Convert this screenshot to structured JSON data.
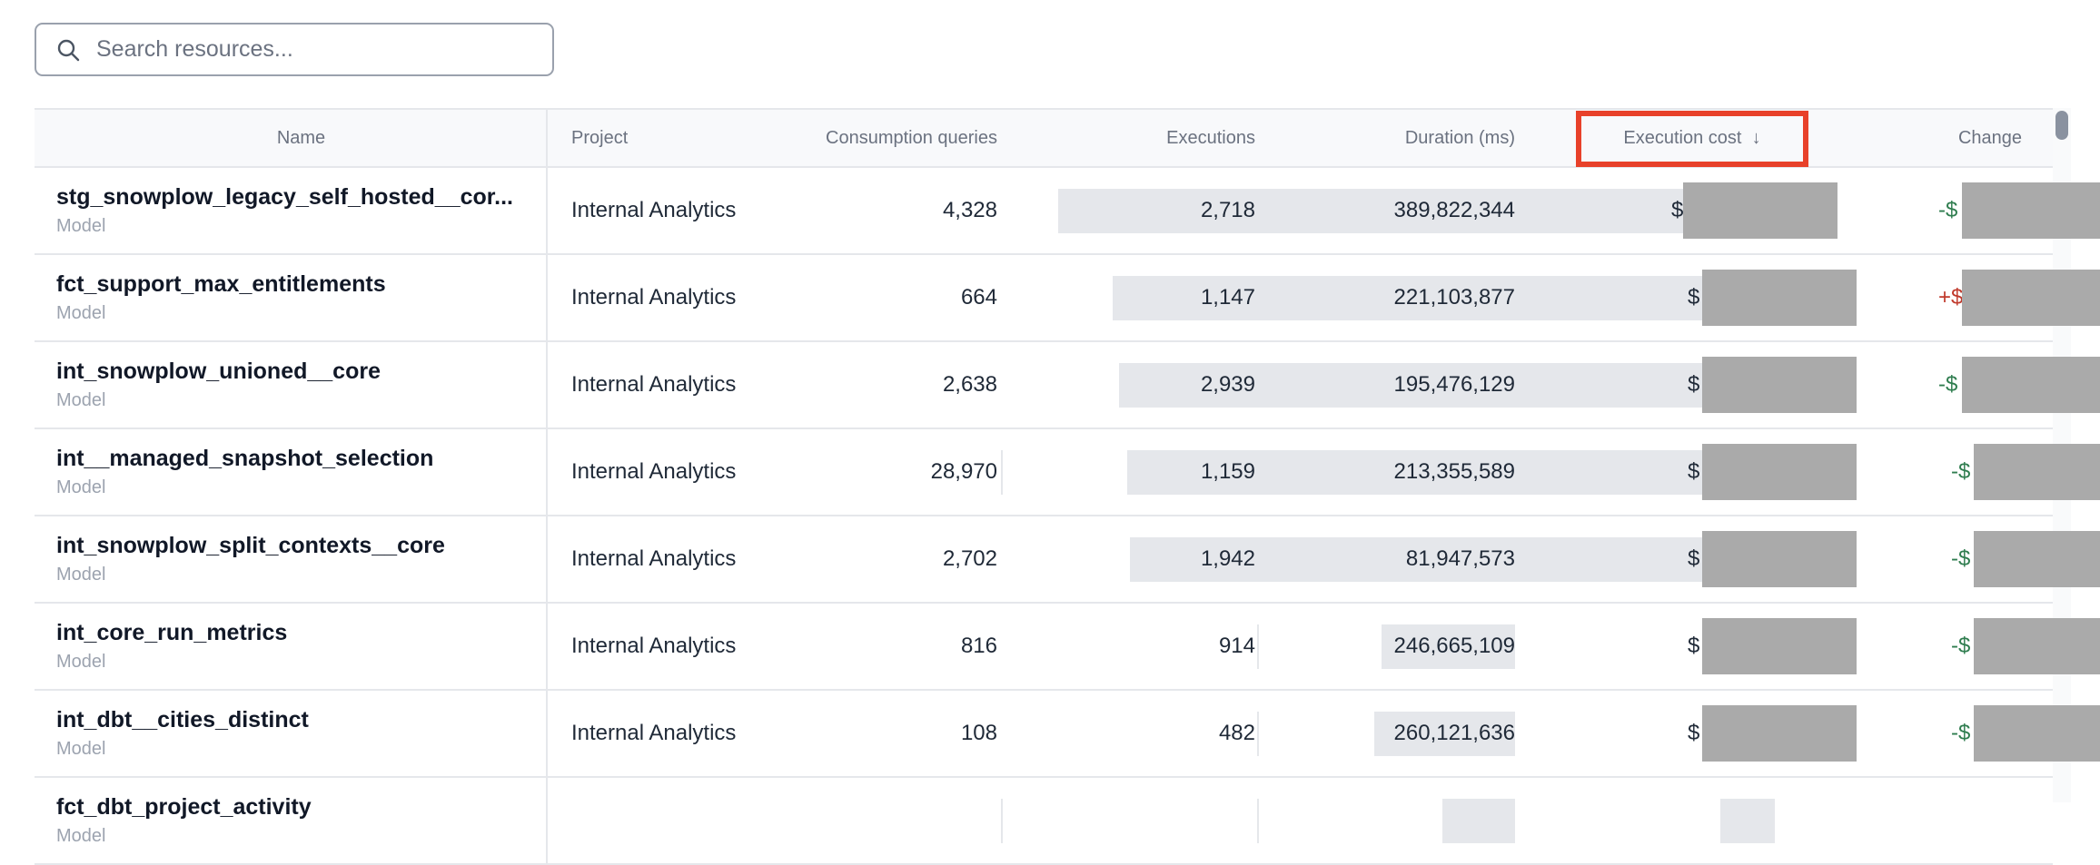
{
  "search": {
    "placeholder": "Search resources...",
    "icon": "search-icon"
  },
  "columns": {
    "name": "Name",
    "project": "Project",
    "consumption": "Consumption queries",
    "executions": "Executions",
    "duration": "Duration (ms)",
    "cost": "Execution cost",
    "cost_sort": "↓",
    "change": "Change"
  },
  "colors": {
    "highlight": "#e8412a",
    "negative_change": "#2f7d4f",
    "positive_change": "#c0392b",
    "redaction": "#aaaaaa"
  },
  "rows": [
    {
      "name": "stg_snowplow_legacy_self_hosted__cor...",
      "type": "Model",
      "project": "Internal Analytics",
      "consumption": "4,328",
      "executions": "2,718",
      "duration": "389,822,344",
      "duration_value": 389822344,
      "cost": "$",
      "change": "-$",
      "change_sign": "negative"
    },
    {
      "name": "fct_support_max_entitlements",
      "type": "Model",
      "project": "Internal Analytics",
      "consumption": "664",
      "executions": "1,147",
      "duration": "221,103,877",
      "duration_value": 221103877,
      "cost": "$",
      "change": "+$",
      "change_sign": "positive"
    },
    {
      "name": "int_snowplow_unioned__core",
      "type": "Model",
      "project": "Internal Analytics",
      "consumption": "2,638",
      "executions": "2,939",
      "duration": "195,476,129",
      "duration_value": 195476129,
      "cost": "$",
      "change": "-$",
      "change_sign": "negative"
    },
    {
      "name": "int__managed_snapshot_selection",
      "type": "Model",
      "project": "Internal Analytics",
      "consumption": "28,970",
      "executions": "1,159",
      "duration": "213,355,589",
      "duration_value": 213355589,
      "cost": "$",
      "change": "-$",
      "change_sign": "negative"
    },
    {
      "name": "int_snowplow_split_contexts__core",
      "type": "Model",
      "project": "Internal Analytics",
      "consumption": "2,702",
      "executions": "1,942",
      "duration": "81,947,573",
      "duration_value": 81947573,
      "cost": "$",
      "change": "-$",
      "change_sign": "negative"
    },
    {
      "name": "int_core_run_metrics",
      "type": "Model",
      "project": "Internal Analytics",
      "consumption": "816",
      "executions": "914",
      "duration": "246,665,109",
      "duration_value": 246665109,
      "cost": "$",
      "change": "-$",
      "change_sign": "negative"
    },
    {
      "name": "int_dbt__cities_distinct",
      "type": "Model",
      "project": "Internal Analytics",
      "consumption": "108",
      "executions": "482",
      "duration": "260,121,636",
      "duration_value": 260121636,
      "cost": "$",
      "change": "-$",
      "change_sign": "negative"
    },
    {
      "name": "fct_dbt_project_activity",
      "type": "Model",
      "project": "",
      "consumption": "",
      "executions": "",
      "duration": "",
      "cost": "",
      "change": "",
      "change_sign": "negative"
    }
  ]
}
